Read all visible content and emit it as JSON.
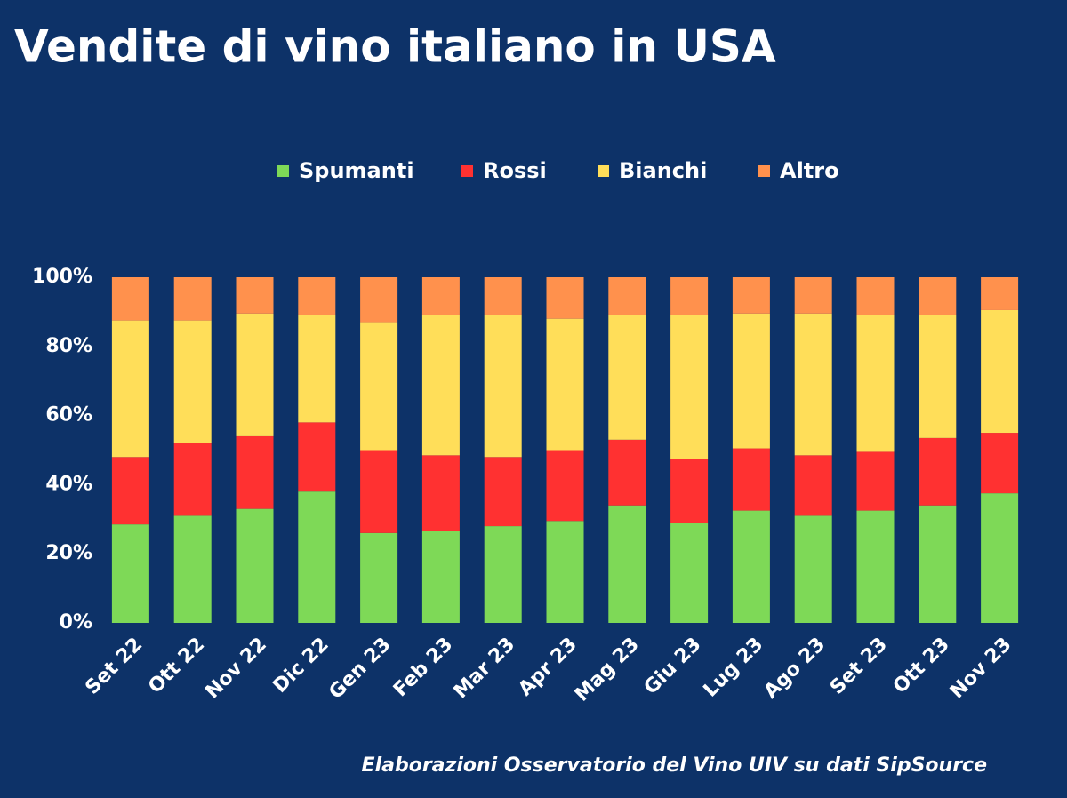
{
  "chart_data": {
    "type": "stacked_bar",
    "title": "Vendite di vino italiano in USA",
    "source": "Elaborazioni Osservatorio del Vino UIV su dati SipSource",
    "categories": [
      "Set 22",
      "Ott 22",
      "Nov 22",
      "Dic 22",
      "Gen 23",
      "Feb 23",
      "Mar 23",
      "Apr 23",
      "Mag 23",
      "Giu 23",
      "Lug 23",
      "Ago 23",
      "Set 23",
      "Ott 23",
      "Nov 23"
    ],
    "series": [
      {
        "name": "Spumanti",
        "color": "#7ed957",
        "values": [
          28.5,
          31,
          33,
          38,
          26,
          26.5,
          28,
          29.5,
          34,
          29,
          32.5,
          31,
          32.5,
          34,
          37.5
        ]
      },
      {
        "name": "Rossi",
        "color": "#ff3131",
        "values": [
          19.5,
          21,
          21,
          20,
          24,
          22,
          20,
          20.5,
          19,
          18.5,
          18,
          17.5,
          17,
          19.5,
          17.5
        ]
      },
      {
        "name": "Bianchi",
        "color": "#ffde59",
        "values": [
          39.5,
          35.5,
          35.5,
          31,
          37,
          40.5,
          41,
          38,
          36,
          41.5,
          39,
          41,
          39.5,
          35.5,
          35.5
        ]
      },
      {
        "name": "Altro",
        "color": "#ff914d",
        "values": [
          12.5,
          12.5,
          10.5,
          11,
          13,
          11,
          11,
          12,
          11,
          11,
          10.5,
          10.5,
          11,
          11,
          9.5
        ]
      }
    ],
    "ylim": [
      0,
      100
    ],
    "yticks": [
      {
        "value": 0,
        "label": "0%"
      },
      {
        "value": 20,
        "label": "20%"
      },
      {
        "value": 40,
        "label": "40%"
      },
      {
        "value": 60,
        "label": "60%"
      },
      {
        "value": 80,
        "label": "80%"
      },
      {
        "value": 100,
        "label": "100%"
      }
    ],
    "grid": false,
    "legend": "top"
  }
}
